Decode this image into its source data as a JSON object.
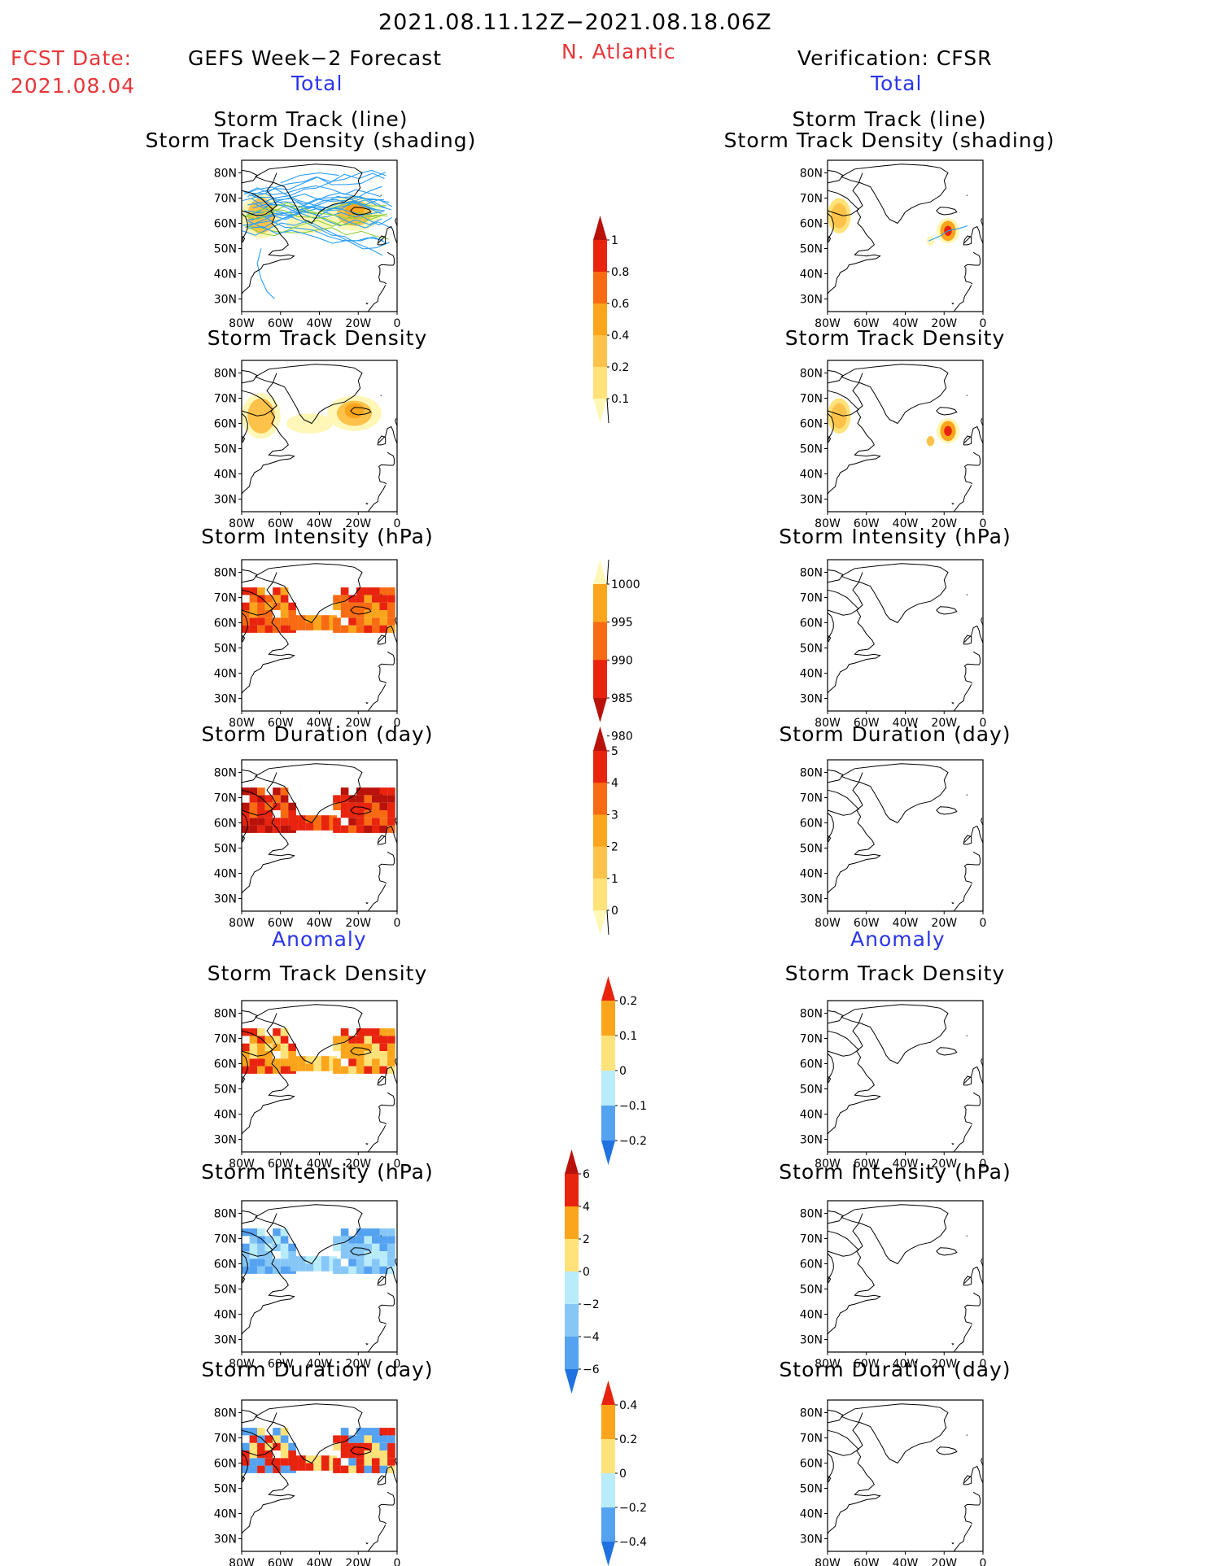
{
  "header": {
    "period": "2021.08.11.12Z−2021.08.18.06Z",
    "fcst_label": "FCST Date:",
    "fcst_date": "2021.08.04",
    "region": "N. Atlantic",
    "left_title": "GEFS Week−2 Forecast",
    "right_title": "Verification: CFSR",
    "total_left": "Total",
    "total_right": "Total",
    "anomaly_left": "Anomaly",
    "anomaly_right": "Anomaly"
  },
  "panel_titles": {
    "track": [
      "Storm Track (line)",
      "Storm Track Density (shading)"
    ],
    "density": "Storm Track Density",
    "intensity": "Storm Intensity (hPa)",
    "duration": "Storm Duration (day)"
  },
  "colors": {
    "c_yellow_pale": "#fff7b8",
    "c_yellow": "#ffe27a",
    "c_gold": "#fcc24a",
    "c_orange": "#fba51c",
    "c_dorange": "#f86b12",
    "c_red": "#e8230e",
    "c_dred": "#b8120a",
    "c_blue_pale": "#b9ecfb",
    "c_blue_light": "#86c7f7",
    "c_blue": "#55a2f1",
    "c_blue_dark": "#1f72e0",
    "c_track": "#2a9df4",
    "c_track_alt": "#8fd13a"
  },
  "chart_data": [
    {
      "type": "heatmap",
      "panel": "forecast-total-track",
      "title": [
        "Storm Track (line)",
        "Storm Track Density (shading)"
      ],
      "x_ticks": [
        "80W",
        "60W",
        "40W",
        "20W",
        "0"
      ],
      "y_ticks": [
        "80N",
        "70N",
        "60N",
        "50N",
        "40N",
        "30N"
      ],
      "xlim": [
        -80,
        0
      ],
      "ylim": [
        25,
        85
      ]
    },
    {
      "type": "heatmap",
      "panel": "forecast-total-density",
      "title": "Storm Track Density",
      "x_ticks": [
        "80W",
        "60W",
        "40W",
        "20W",
        "0"
      ],
      "y_ticks": [
        "80N",
        "70N",
        "60N",
        "50N",
        "40N",
        "30N"
      ],
      "xlim": [
        -80,
        0
      ],
      "ylim": [
        25,
        85
      ]
    },
    {
      "type": "heatmap",
      "panel": "forecast-total-intensity",
      "title": "Storm Intensity (hPa)",
      "x_ticks": [
        "80W",
        "60W",
        "40W",
        "20W",
        "0"
      ],
      "y_ticks": [
        "80N",
        "70N",
        "60N",
        "50N",
        "40N",
        "30N"
      ],
      "xlim": [
        -80,
        0
      ],
      "ylim": [
        25,
        85
      ]
    },
    {
      "type": "heatmap",
      "panel": "forecast-total-duration",
      "title": "Storm Duration (day)",
      "x_ticks": [
        "80W",
        "60W",
        "40W",
        "20W",
        "0"
      ],
      "y_ticks": [
        "80N",
        "70N",
        "60N",
        "50N",
        "40N",
        "30N"
      ],
      "xlim": [
        -80,
        0
      ],
      "ylim": [
        25,
        85
      ]
    },
    {
      "type": "heatmap",
      "panel": "forecast-anomaly-density",
      "title": "Storm Track Density",
      "x_ticks": [
        "80W",
        "60W",
        "40W",
        "20W",
        "0"
      ],
      "y_ticks": [
        "80N",
        "70N",
        "60N",
        "50N",
        "40N",
        "30N"
      ],
      "xlim": [
        -80,
        0
      ],
      "ylim": [
        25,
        85
      ]
    },
    {
      "type": "heatmap",
      "panel": "forecast-anomaly-intensity",
      "title": "Storm Intensity (hPa)",
      "x_ticks": [
        "80W",
        "60W",
        "40W",
        "20W",
        "0"
      ],
      "y_ticks": [
        "80N",
        "70N",
        "60N",
        "50N",
        "40N",
        "30N"
      ],
      "xlim": [
        -80,
        0
      ],
      "ylim": [
        25,
        85
      ]
    },
    {
      "type": "heatmap",
      "panel": "forecast-anomaly-duration",
      "title": "Storm Duration (day)",
      "x_ticks": [
        "80W",
        "60W",
        "40W",
        "20W",
        "0"
      ],
      "y_ticks": [
        "80N",
        "70N",
        "60N",
        "50N",
        "40N",
        "30N"
      ],
      "xlim": [
        -80,
        0
      ],
      "ylim": [
        25,
        85
      ]
    },
    {
      "type": "heatmap",
      "panel": "verification-total-track",
      "title": [
        "Storm Track (line)",
        "Storm Track Density (shading)"
      ],
      "x_ticks": [
        "80W",
        "60W",
        "40W",
        "20W",
        "0"
      ],
      "y_ticks": [
        "80N",
        "70N",
        "60N",
        "50N",
        "40N",
        "30N"
      ],
      "xlim": [
        -80,
        0
      ],
      "ylim": [
        25,
        85
      ]
    },
    {
      "type": "heatmap",
      "panel": "verification-total-density",
      "title": "Storm Track Density",
      "x_ticks": [
        "80W",
        "60W",
        "40W",
        "20W",
        "0"
      ],
      "y_ticks": [
        "80N",
        "70N",
        "60N",
        "50N",
        "40N",
        "30N"
      ],
      "xlim": [
        -80,
        0
      ],
      "ylim": [
        25,
        85
      ]
    },
    {
      "type": "heatmap",
      "panel": "verification-total-intensity",
      "title": "Storm Intensity (hPa)",
      "x_ticks": [
        "80W",
        "60W",
        "40W",
        "20W",
        "0"
      ],
      "y_ticks": [
        "80N",
        "70N",
        "60N",
        "50N",
        "40N",
        "30N"
      ],
      "xlim": [
        -80,
        0
      ],
      "ylim": [
        25,
        85
      ]
    },
    {
      "type": "heatmap",
      "panel": "verification-total-duration",
      "title": "Storm Duration (day)",
      "x_ticks": [
        "80W",
        "60W",
        "40W",
        "20W",
        "0"
      ],
      "y_ticks": [
        "80N",
        "70N",
        "60N",
        "50N",
        "40N",
        "30N"
      ],
      "xlim": [
        -80,
        0
      ],
      "ylim": [
        25,
        85
      ]
    },
    {
      "type": "heatmap",
      "panel": "verification-anomaly-density",
      "title": "Storm Track Density",
      "x_ticks": [
        "80W",
        "60W",
        "40W",
        "20W",
        "0"
      ],
      "y_ticks": [
        "80N",
        "70N",
        "60N",
        "50N",
        "40N",
        "30N"
      ],
      "xlim": [
        -80,
        0
      ],
      "ylim": [
        25,
        85
      ]
    },
    {
      "type": "heatmap",
      "panel": "verification-anomaly-intensity",
      "title": "Storm Intensity (hPa)",
      "x_ticks": [
        "80W",
        "60W",
        "40W",
        "20W",
        "0"
      ],
      "y_ticks": [
        "80N",
        "70N",
        "60N",
        "50N",
        "40N",
        "30N"
      ],
      "xlim": [
        -80,
        0
      ],
      "ylim": [
        25,
        85
      ]
    },
    {
      "type": "heatmap",
      "panel": "verification-anomaly-duration",
      "title": "Storm Duration (day)",
      "x_ticks": [
        "80W",
        "60W",
        "40W",
        "20W",
        "0"
      ],
      "y_ticks": [
        "80N",
        "70N",
        "60N",
        "50N",
        "40N",
        "30N"
      ],
      "xlim": [
        -80,
        0
      ],
      "ylim": [
        25,
        85
      ]
    }
  ],
  "colorbars": [
    {
      "name": "track-density-total",
      "labels": [
        "1",
        "0.8",
        "0.6",
        "0.4",
        "0.2",
        "0.1"
      ],
      "colors": [
        "#b8120a",
        "#e8230e",
        "#f86b12",
        "#fba51c",
        "#fcc24a",
        "#ffe27a",
        "#fff7b8"
      ],
      "bottom_open": true
    },
    {
      "name": "intensity-total",
      "labels": [
        "1000",
        "995",
        "990",
        "985",
        "980"
      ],
      "colors": [
        "#fff7b8",
        "#fba51c",
        "#f86b12",
        "#e8230e",
        "#b8120a"
      ],
      "top_open": true,
      "reversed": true
    },
    {
      "name": "duration-total",
      "labels": [
        "5",
        "4",
        "3",
        "2",
        "1",
        "0"
      ],
      "colors": [
        "#b8120a",
        "#e8230e",
        "#f86b12",
        "#fba51c",
        "#fcc24a",
        "#ffe27a",
        "#fff7b8"
      ],
      "bottom_open": true
    },
    {
      "name": "track-density-anomaly",
      "labels": [
        "0.2",
        "0.1",
        "0",
        "−0.1",
        "−0.2"
      ],
      "colors": [
        "#e8230e",
        "#fba51c",
        "#ffe27a",
        "#b9ecfb",
        "#55a2f1",
        "#1f72e0"
      ]
    },
    {
      "name": "intensity-anomaly",
      "labels": [
        "6",
        "4",
        "2",
        "0",
        "−2",
        "−4",
        "−6"
      ],
      "colors": [
        "#b8120a",
        "#e8230e",
        "#fba51c",
        "#ffe27a",
        "#b9ecfb",
        "#86c7f7",
        "#55a2f1",
        "#1f72e0"
      ]
    },
    {
      "name": "duration-anomaly",
      "labels": [
        "0.4",
        "0.2",
        "0",
        "−0.2",
        "−0.4"
      ],
      "colors": [
        "#e8230e",
        "#fba51c",
        "#ffe27a",
        "#b9ecfb",
        "#55a2f1",
        "#1f72e0"
      ]
    }
  ]
}
